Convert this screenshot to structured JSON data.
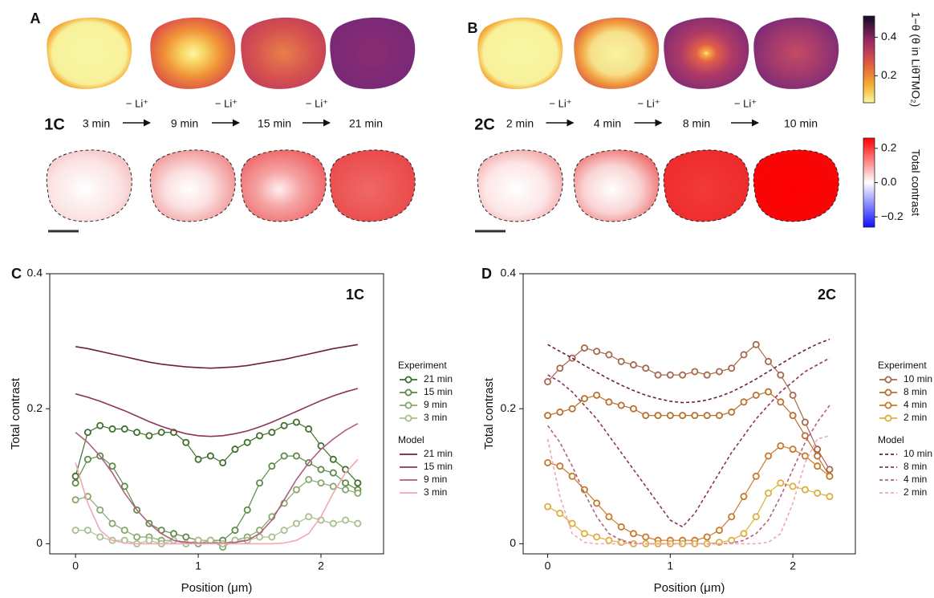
{
  "top": {
    "step": "− Li⁺",
    "panels": [
      {
        "label": "A",
        "rate": "1C",
        "times": [
          "3 min",
          "9 min",
          "15 min",
          "21 min"
        ]
      },
      {
        "label": "B",
        "rate": "2C",
        "times": [
          "2 min",
          "4 min",
          "8 min",
          "10 min"
        ]
      }
    ],
    "colorbars": [
      {
        "label": "1−θ (θ in LiθTMO₂)",
        "lim": [
          0.06,
          0.51
        ],
        "ticks": [
          0.4,
          0.2
        ]
      },
      {
        "label": "Total contrast",
        "lim": [
          -0.26,
          0.26
        ],
        "ticks": [
          0.2,
          {
            "value": 0,
            "label": "0.0"
          },
          {
            "value": -0.2,
            "label": "−0.2"
          }
        ]
      }
    ]
  },
  "chart_data": [
    {
      "type": "line",
      "panel": "C",
      "annotation": "1C",
      "xlabel": "Position (μm)",
      "ylabel": "Total contrast",
      "xlim": [
        -0.21,
        2.51
      ],
      "ylim": [
        -0.015,
        0.4
      ],
      "xticks": [
        0,
        1,
        2
      ],
      "yticks": [
        0,
        0.2,
        0.4
      ],
      "legend_titles": [
        "Experiment",
        "Model"
      ],
      "x": [
        0,
        0.1,
        0.2,
        0.3,
        0.4,
        0.5,
        0.6,
        0.7,
        0.8,
        0.9,
        1.0,
        1.1,
        1.2,
        1.3,
        1.4,
        1.5,
        1.6,
        1.7,
        1.8,
        1.9,
        2.0,
        2.1,
        2.2,
        2.3
      ],
      "series": [
        {
          "name": "21 min",
          "group": 0,
          "style": "markers",
          "color": "#3f6e2c",
          "values": [
            0.1,
            0.165,
            0.175,
            0.17,
            0.17,
            0.165,
            0.16,
            0.165,
            0.165,
            0.15,
            0.125,
            0.13,
            0.12,
            0.14,
            0.15,
            0.16,
            0.165,
            0.175,
            0.18,
            0.17,
            0.145,
            0.125,
            0.11,
            0.09
          ]
        },
        {
          "name": "15 min",
          "group": 0,
          "style": "markers",
          "color": "#5e8a48",
          "values": [
            0.09,
            0.125,
            0.13,
            0.115,
            0.085,
            0.05,
            0.03,
            0.02,
            0.015,
            0.01,
            0.005,
            0.005,
            0.005,
            0.02,
            0.05,
            0.09,
            0.115,
            0.13,
            0.13,
            0.12,
            0.11,
            0.105,
            0.09,
            0.08
          ]
        },
        {
          "name": "9 min",
          "group": 0,
          "style": "markers",
          "color": "#86a86c",
          "values": [
            0.065,
            0.07,
            0.05,
            0.03,
            0.02,
            0.01,
            0.01,
            0.005,
            0.005,
            0.0,
            0.0,
            0.005,
            -0.005,
            0.005,
            0.01,
            0.02,
            0.04,
            0.06,
            0.08,
            0.095,
            0.09,
            0.085,
            0.08,
            0.075
          ]
        },
        {
          "name": "3 min",
          "group": 0,
          "style": "markers",
          "color": "#a8bf90",
          "values": [
            0.02,
            0.02,
            0.01,
            0.005,
            0.005,
            0.0,
            0.005,
            0.0,
            0.005,
            0.0,
            0.005,
            0.005,
            0.0,
            0.005,
            0.005,
            0.01,
            0.01,
            0.02,
            0.03,
            0.04,
            0.035,
            0.03,
            0.035,
            0.03
          ]
        },
        {
          "name": "21 min",
          "group": 1,
          "style": "solid",
          "color": "#6b2040",
          "values": [
            0.292,
            0.289,
            0.285,
            0.281,
            0.277,
            0.273,
            0.269,
            0.266,
            0.264,
            0.262,
            0.261,
            0.26,
            0.261,
            0.262,
            0.264,
            0.267,
            0.27,
            0.273,
            0.277,
            0.281,
            0.285,
            0.289,
            0.292,
            0.295
          ]
        },
        {
          "name": "15 min",
          "group": 1,
          "style": "solid",
          "color": "#8e3456",
          "values": [
            0.222,
            0.217,
            0.211,
            0.204,
            0.197,
            0.189,
            0.181,
            0.174,
            0.168,
            0.163,
            0.16,
            0.159,
            0.16,
            0.163,
            0.167,
            0.173,
            0.18,
            0.188,
            0.196,
            0.204,
            0.212,
            0.219,
            0.225,
            0.23
          ]
        },
        {
          "name": "9 min",
          "group": 1,
          "style": "solid",
          "color": "#b06080",
          "values": [
            0.165,
            0.15,
            0.13,
            0.105,
            0.075,
            0.05,
            0.03,
            0.015,
            0.005,
            0.002,
            0.001,
            0.001,
            0.001,
            0.002,
            0.005,
            0.015,
            0.035,
            0.065,
            0.095,
            0.12,
            0.14,
            0.155,
            0.168,
            0.178
          ]
        },
        {
          "name": "3 min",
          "group": 1,
          "style": "solid",
          "color": "#f0a8b0",
          "values": [
            0.12,
            0.06,
            0.02,
            0.005,
            0.001,
            0,
            0,
            0,
            0,
            0,
            0,
            0,
            0,
            0,
            0,
            0,
            0,
            0.001,
            0.005,
            0.015,
            0.04,
            0.075,
            0.105,
            0.125
          ]
        }
      ]
    },
    {
      "type": "line",
      "panel": "D",
      "annotation": "2C",
      "xlabel": "Position (μm)",
      "ylabel": "Total contrast",
      "xlim": [
        -0.2,
        2.51
      ],
      "ylim": [
        -0.015,
        0.4
      ],
      "xticks": [
        0,
        1,
        2
      ],
      "yticks": [
        0,
        0.2,
        0.4
      ],
      "legend_titles": [
        "Experiment",
        "Model"
      ],
      "x": [
        0,
        0.1,
        0.2,
        0.3,
        0.4,
        0.5,
        0.6,
        0.7,
        0.8,
        0.9,
        1.0,
        1.1,
        1.2,
        1.3,
        1.4,
        1.5,
        1.6,
        1.7,
        1.8,
        1.9,
        2.0,
        2.1,
        2.2,
        2.3
      ],
      "series": [
        {
          "name": "10 min",
          "group": 0,
          "style": "markers",
          "color": "#a8674a",
          "values": [
            0.24,
            0.26,
            0.275,
            0.29,
            0.285,
            0.28,
            0.27,
            0.265,
            0.26,
            0.25,
            0.25,
            0.25,
            0.255,
            0.25,
            0.255,
            0.26,
            0.28,
            0.295,
            0.27,
            0.25,
            0.22,
            0.18,
            0.14,
            0.11
          ]
        },
        {
          "name": "8 min",
          "group": 0,
          "style": "markers",
          "color": "#b8702e",
          "values": [
            0.19,
            0.195,
            0.2,
            0.215,
            0.22,
            0.21,
            0.205,
            0.2,
            0.19,
            0.19,
            0.19,
            0.19,
            0.19,
            0.19,
            0.19,
            0.195,
            0.21,
            0.22,
            0.225,
            0.21,
            0.19,
            0.16,
            0.13,
            0.1
          ]
        },
        {
          "name": "4 min",
          "group": 0,
          "style": "markers",
          "color": "#c8782a",
          "values": [
            0.12,
            0.115,
            0.1,
            0.08,
            0.06,
            0.04,
            0.025,
            0.015,
            0.01,
            0.005,
            0.005,
            0.005,
            0.005,
            0.01,
            0.02,
            0.04,
            0.07,
            0.1,
            0.13,
            0.145,
            0.14,
            0.13,
            0.115,
            0.1
          ]
        },
        {
          "name": "2 min",
          "group": 0,
          "style": "markers",
          "color": "#deae3c",
          "values": [
            0.055,
            0.045,
            0.03,
            0.015,
            0.01,
            0.005,
            0.002,
            0,
            0,
            0,
            0,
            0,
            0,
            0,
            0.002,
            0.005,
            0.015,
            0.04,
            0.075,
            0.09,
            0.085,
            0.08,
            0.075,
            0.07
          ]
        },
        {
          "name": "10 min",
          "group": 1,
          "style": "dashed",
          "color": "#6b2040",
          "values": [
            0.295,
            0.285,
            0.275,
            0.264,
            0.254,
            0.244,
            0.235,
            0.227,
            0.22,
            0.215,
            0.211,
            0.209,
            0.21,
            0.213,
            0.218,
            0.225,
            0.234,
            0.244,
            0.255,
            0.266,
            0.277,
            0.287,
            0.296,
            0.303
          ]
        },
        {
          "name": "8 min",
          "group": 1,
          "style": "dashed",
          "color": "#8e3456",
          "values": [
            0.25,
            0.24,
            0.225,
            0.205,
            0.185,
            0.16,
            0.135,
            0.11,
            0.085,
            0.06,
            0.035,
            0.025,
            0.045,
            0.075,
            0.105,
            0.135,
            0.16,
            0.185,
            0.205,
            0.225,
            0.24,
            0.255,
            0.265,
            0.275
          ]
        },
        {
          "name": "4 min",
          "group": 1,
          "style": "dashed",
          "color": "#b06080",
          "values": [
            0.175,
            0.15,
            0.115,
            0.075,
            0.04,
            0.015,
            0.005,
            0.001,
            0,
            0,
            0,
            0,
            0,
            0,
            0,
            0.001,
            0.005,
            0.015,
            0.035,
            0.07,
            0.11,
            0.15,
            0.18,
            0.205
          ]
        },
        {
          "name": "2 min",
          "group": 1,
          "style": "dashed",
          "color": "#f0a8b0",
          "values": [
            0.155,
            0.07,
            0.015,
            0.002,
            0,
            0,
            0,
            0,
            0,
            0,
            0,
            0,
            0,
            0,
            0,
            0,
            0,
            0,
            0.002,
            0.015,
            0.06,
            0.12,
            0.155,
            0.16
          ]
        }
      ]
    }
  ]
}
